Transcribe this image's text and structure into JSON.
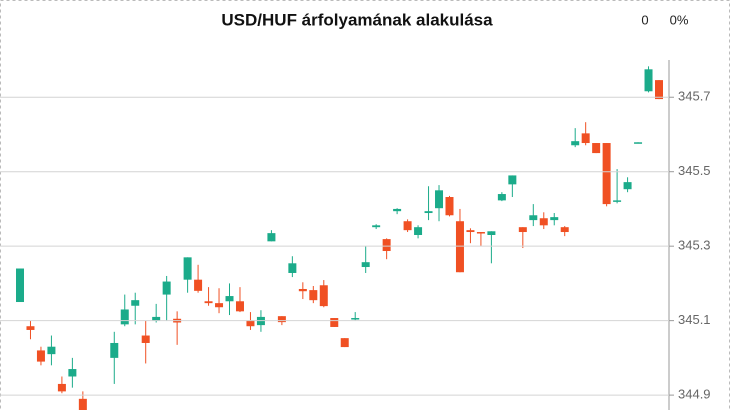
{
  "chart_data": {
    "type": "candlestick",
    "title": "USD/HUF árfolyamának alakulása",
    "annotations": [
      "0",
      "0%"
    ],
    "up_color": "#1bab8a",
    "down_color": "#f05023",
    "ylim": [
      344.86,
      345.8
    ],
    "yticks": [
      344.9,
      345.1,
      345.3,
      345.5,
      345.7
    ],
    "grid": true,
    "open": [
      345.15,
      345.085,
      345.02,
      345.01,
      344.93,
      344.95,
      344.89,
      null,
      null,
      345.0,
      345.09,
      345.14,
      345.06,
      345.1,
      345.17,
      345.105,
      345.21,
      345.21,
      345.152,
      345.147,
      345.152,
      345.152,
      345.101,
      345.088,
      345.313,
      345.112,
      345.228,
      345.185,
      345.182,
      345.195,
      345.107,
      345.053,
      345.104,
      345.244,
      345.351,
      345.319,
      345.394,
      345.367,
      345.33,
      345.389,
      345.402,
      345.432,
      345.367,
      345.343,
      345.338,
      345.33,
      345.423,
      345.466,
      345.351,
      345.37,
      345.375,
      345.37,
      345.351,
      345.571,
      345.603,
      345.577,
      345.577,
      345.421,
      345.453,
      345.577,
      345.716,
      345.746
    ],
    "high": [
      345.24,
      345.1,
      345.03,
      345.06,
      344.95,
      345.0,
      344.91,
      null,
      null,
      345.07,
      345.17,
      345.175,
      345.1,
      345.145,
      345.22,
      345.125,
      345.27,
      345.25,
      345.19,
      345.187,
      345.2,
      345.19,
      345.123,
      345.128,
      345.343,
      345.112,
      345.273,
      345.203,
      345.193,
      345.209,
      345.107,
      345.053,
      345.123,
      345.3,
      345.359,
      345.321,
      345.402,
      345.372,
      345.356,
      345.461,
      345.464,
      345.435,
      345.4,
      345.348,
      345.338,
      345.34,
      345.445,
      345.49,
      345.351,
      345.413,
      345.391,
      345.389,
      345.354,
      345.617,
      345.633,
      345.577,
      345.577,
      345.507,
      345.485,
      345.579,
      345.783,
      345.746
    ],
    "low": [
      345.15,
      345.05,
      344.98,
      344.98,
      344.905,
      344.92,
      344.86,
      null,
      null,
      344.93,
      345.085,
      345.09,
      344.985,
      345.095,
      345.1,
      345.035,
      345.175,
      345.175,
      345.14,
      345.12,
      345.115,
      345.123,
      345.075,
      345.07,
      345.313,
      345.088,
      345.217,
      345.158,
      345.147,
      345.136,
      345.083,
      345.029,
      345.101,
      345.228,
      345.346,
      345.265,
      345.386,
      345.338,
      345.321,
      345.37,
      345.367,
      345.38,
      345.23,
      345.308,
      345.3,
      345.254,
      345.421,
      345.432,
      345.295,
      345.354,
      345.346,
      345.356,
      345.327,
      345.566,
      345.571,
      345.55,
      345.407,
      345.415,
      345.445,
      345.577,
      345.713,
      345.695
    ],
    "close": [
      345.24,
      345.075,
      344.99,
      345.03,
      344.91,
      344.97,
      344.86,
      null,
      null,
      345.04,
      345.13,
      345.155,
      345.04,
      345.11,
      345.205,
      345.095,
      345.27,
      345.18,
      345.147,
      345.136,
      345.166,
      345.125,
      345.085,
      345.11,
      345.335,
      345.096,
      345.254,
      345.179,
      345.155,
      345.139,
      345.083,
      345.029,
      345.107,
      345.257,
      345.356,
      345.287,
      345.4,
      345.343,
      345.351,
      345.394,
      345.45,
      345.383,
      345.23,
      345.338,
      345.335,
      345.34,
      345.44,
      345.49,
      345.338,
      345.383,
      345.356,
      345.378,
      345.338,
      345.582,
      345.577,
      345.55,
      345.413,
      345.423,
      345.472,
      345.579,
      345.775,
      345.695
    ]
  }
}
